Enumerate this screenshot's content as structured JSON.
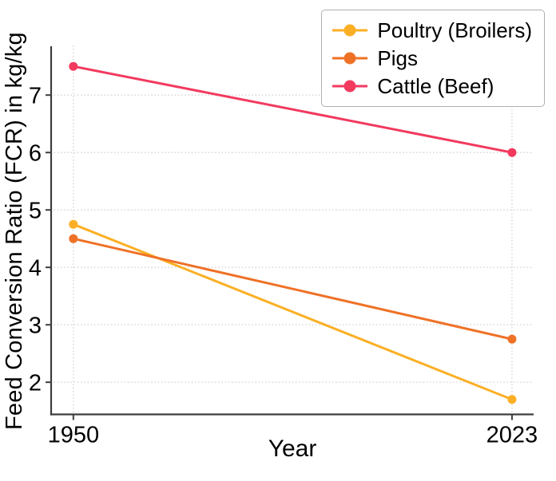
{
  "chart_data": {
    "type": "line",
    "x": [
      1950,
      2023
    ],
    "x_tick_labels": [
      "1950",
      "2023"
    ],
    "series": [
      {
        "name": "Poultry (Broilers)",
        "values": [
          4.75,
          1.7
        ],
        "color": "#FBAF24"
      },
      {
        "name": "Pigs",
        "values": [
          4.5,
          2.75
        ],
        "color": "#EF7126"
      },
      {
        "name": "Cattle (Beef)",
        "values": [
          7.5,
          6.0
        ],
        "color": "#F23A5F"
      }
    ],
    "title": "",
    "xlabel": "Year",
    "ylabel": "Feed Conversion Ratio (FCR) in kg/kg",
    "yticks": [
      2,
      3,
      4,
      5,
      6,
      7
    ],
    "xlim": [
      1946.3,
      2026.6
    ],
    "ylim": [
      1.44,
      7.85
    ],
    "grid": "dotted",
    "grid_color": "#dcdcdc",
    "spine_color": "#3d3d3d",
    "tick_label_color": "#000000",
    "background_color": "#ffffff",
    "legend_position": "top-right",
    "marker": "circle"
  }
}
